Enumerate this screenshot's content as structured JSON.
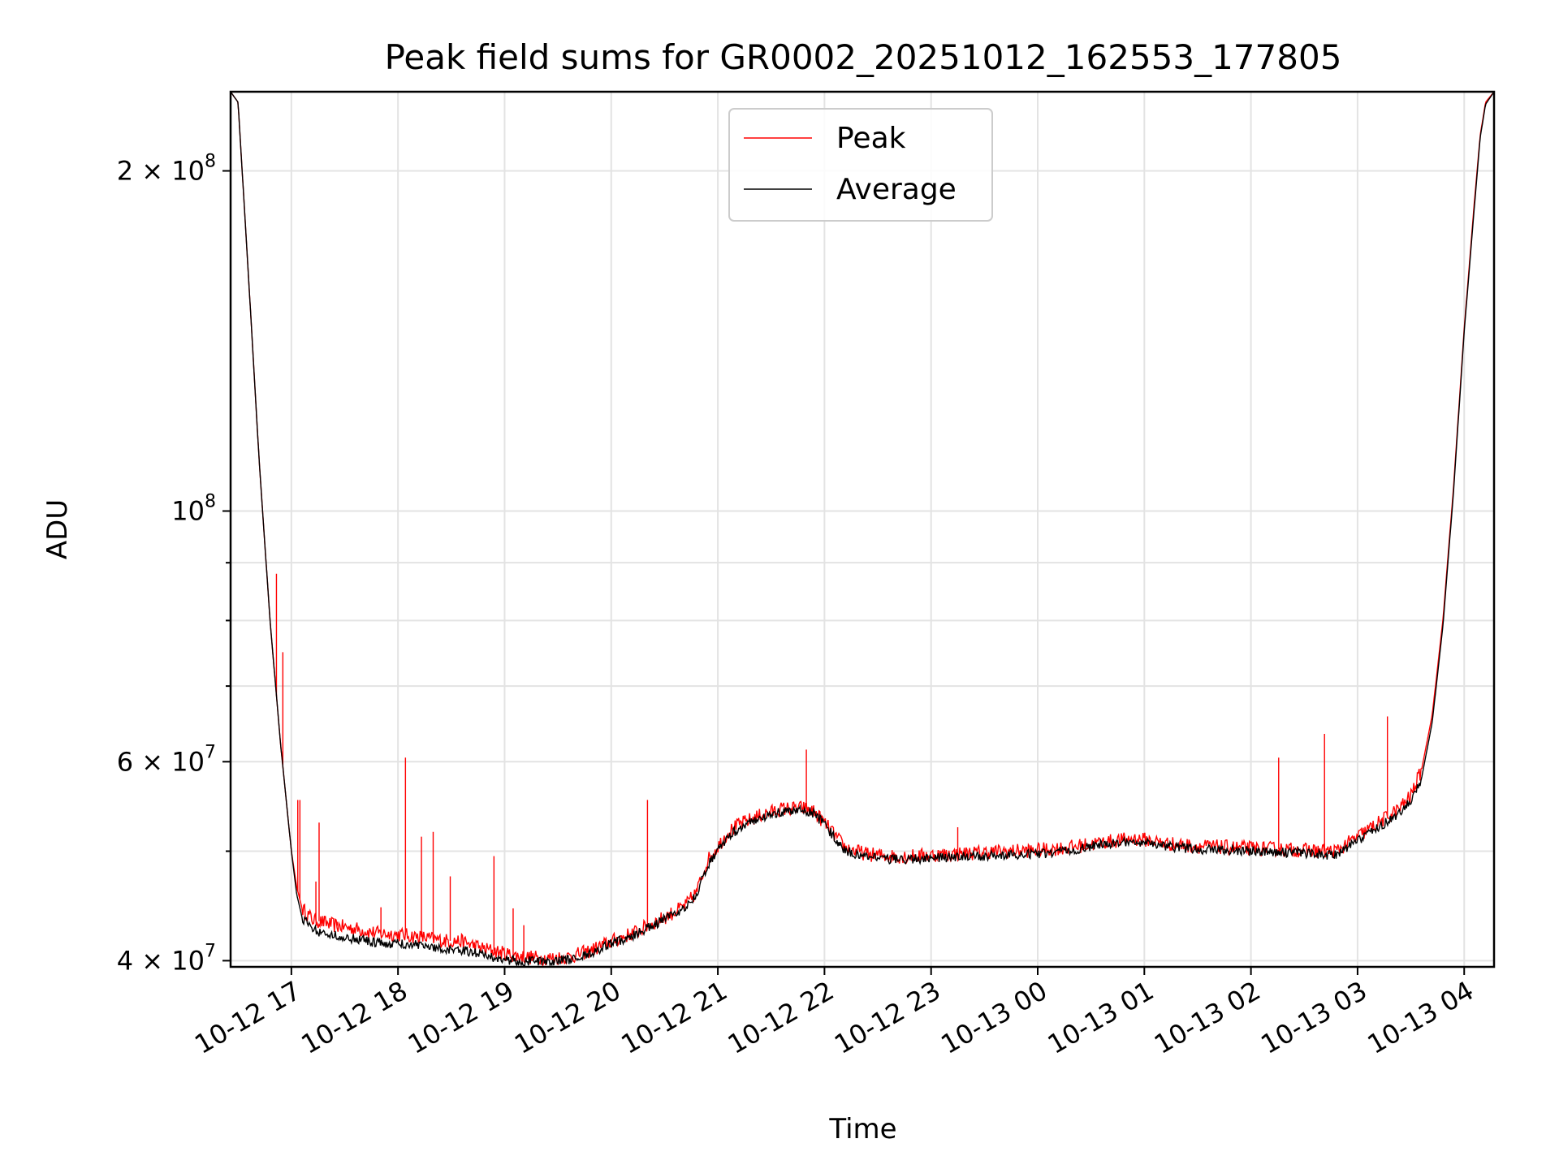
{
  "chart_data": {
    "type": "line",
    "title": "Peak field sums for GR0002_20251012_162553_177805",
    "xlabel": "Time",
    "ylabel": "ADU",
    "yscale": "log",
    "ylim": [
      39500000,
      235000000
    ],
    "x_unit": "hours since 10-12 16:00",
    "xlim": [
      0.43,
      12.28
    ],
    "grid": true,
    "legend_placement": "upper center",
    "x_ticks": [
      {
        "value": 1,
        "label": "10-12 17"
      },
      {
        "value": 2,
        "label": "10-12 18"
      },
      {
        "value": 3,
        "label": "10-12 19"
      },
      {
        "value": 4,
        "label": "10-12 20"
      },
      {
        "value": 5,
        "label": "10-12 21"
      },
      {
        "value": 6,
        "label": "10-12 22"
      },
      {
        "value": 7,
        "label": "10-12 23"
      },
      {
        "value": 8,
        "label": "10-13 00"
      },
      {
        "value": 9,
        "label": "10-13 01"
      },
      {
        "value": 10,
        "label": "10-13 02"
      },
      {
        "value": 11,
        "label": "10-13 03"
      },
      {
        "value": 12,
        "label": "10-13 04"
      }
    ],
    "y_major_ticks": [
      {
        "value": 40000000,
        "mant": "4",
        "exp": "7"
      },
      {
        "value": 60000000,
        "mant": "6",
        "exp": "7"
      },
      {
        "value": 100000000,
        "mant": "",
        "exp": "8"
      },
      {
        "value": 200000000,
        "mant": "2",
        "exp": "8"
      }
    ],
    "y_minor_ticks": [
      50000000,
      70000000,
      80000000,
      90000000
    ],
    "series": [
      {
        "name": "Peak",
        "color": "#ff0000",
        "x": [
          0.43,
          0.5,
          0.6,
          0.7,
          0.8,
          0.9,
          1.0,
          1.05,
          1.1,
          1.2,
          1.4,
          1.6,
          1.8,
          2.0,
          2.2,
          2.4,
          2.6,
          2.8,
          2.9,
          3.0,
          3.1,
          3.2,
          3.4,
          3.6,
          3.8,
          4.0,
          4.2,
          4.4,
          4.6,
          4.7,
          4.8,
          4.9,
          5.0,
          5.1,
          5.2,
          5.4,
          5.6,
          5.8,
          5.9,
          6.0,
          6.1,
          6.2,
          6.4,
          6.6,
          6.8,
          7.0,
          7.2,
          7.5,
          8.0,
          8.3,
          8.6,
          8.9,
          9.0,
          9.2,
          9.5,
          9.8,
          10.0,
          10.3,
          10.5,
          10.7,
          10.8,
          11.0,
          11.2,
          11.4,
          11.5,
          11.6,
          11.7,
          11.8,
          11.9,
          12.0,
          12.1,
          12.15,
          12.2,
          12.28
        ],
        "y": [
          235000000,
          230000000,
          160000000,
          110000000,
          80000000,
          62000000,
          50000000,
          46500000,
          44500000,
          43500000,
          43000000,
          42700000,
          42300000,
          42200000,
          42000000,
          41700000,
          41600000,
          41000000,
          40800000,
          40600000,
          40400000,
          40300000,
          40200000,
          40300000,
          40800000,
          41600000,
          42300000,
          43200000,
          44200000,
          44800000,
          46000000,
          49000000,
          50500000,
          52000000,
          52800000,
          53800000,
          54500000,
          54600000,
          54200000,
          53000000,
          51600000,
          50300000,
          49700000,
          49500000,
          49500000,
          49600000,
          49700000,
          49900000,
          50100000,
          50400000,
          50900000,
          51300000,
          51200000,
          50800000,
          50500000,
          50400000,
          50300000,
          50200000,
          50100000,
          50000000,
          50000000,
          51500000,
          53000000,
          54600000,
          56000000,
          59000000,
          66000000,
          80000000,
          105000000,
          145000000,
          190000000,
          215000000,
          230000000,
          235000000
        ]
      },
      {
        "name": "Average",
        "color": "#000000",
        "x": [
          0.43,
          0.5,
          0.6,
          0.7,
          0.8,
          0.9,
          1.0,
          1.05,
          1.1,
          1.2,
          1.4,
          1.6,
          1.8,
          2.0,
          2.2,
          2.4,
          2.6,
          2.8,
          2.9,
          3.0,
          3.1,
          3.2,
          3.4,
          3.6,
          3.8,
          4.0,
          4.2,
          4.4,
          4.6,
          4.7,
          4.8,
          4.9,
          5.0,
          5.1,
          5.2,
          5.4,
          5.6,
          5.8,
          5.9,
          6.0,
          6.1,
          6.2,
          6.4,
          6.6,
          6.8,
          7.0,
          7.2,
          7.5,
          8.0,
          8.3,
          8.6,
          8.9,
          9.0,
          9.2,
          9.5,
          9.8,
          10.0,
          10.3,
          10.5,
          10.7,
          10.8,
          11.0,
          11.2,
          11.4,
          11.5,
          11.6,
          11.7,
          11.8,
          11.9,
          12.0,
          12.1,
          12.15,
          12.2,
          12.28
        ],
        "y": [
          235000000,
          230000000,
          160000000,
          110000000,
          80000000,
          62000000,
          50000000,
          45800000,
          43700000,
          42600000,
          42100000,
          41800000,
          41500000,
          41400000,
          41300000,
          41000000,
          40900000,
          40500000,
          40300000,
          40100000,
          40000000,
          40000000,
          39900000,
          40100000,
          40600000,
          41400000,
          42100000,
          43000000,
          44000000,
          44600000,
          45700000,
          48500000,
          50000000,
          51600000,
          52400000,
          53500000,
          54200000,
          54400000,
          54000000,
          52800000,
          51300000,
          50000000,
          49400000,
          49200000,
          49200000,
          49300000,
          49400000,
          49500000,
          49700000,
          50100000,
          50700000,
          51000000,
          50900000,
          50500000,
          50200000,
          50100000,
          50000000,
          49900000,
          49800000,
          49600000,
          49600000,
          51000000,
          52500000,
          54000000,
          55500000,
          58000000,
          65000000,
          79000000,
          104000000,
          144000000,
          188000000,
          214000000,
          229000000,
          235000000
        ]
      }
    ],
    "peak_spikes": [
      {
        "x": 0.86,
        "y": 88000000
      },
      {
        "x": 0.92,
        "y": 75000000
      },
      {
        "x": 1.06,
        "y": 55500000
      },
      {
        "x": 1.08,
        "y": 55500000
      },
      {
        "x": 1.23,
        "y": 47000000
      },
      {
        "x": 1.26,
        "y": 53000000
      },
      {
        "x": 1.43,
        "y": 43300000
      },
      {
        "x": 1.84,
        "y": 44600000
      },
      {
        "x": 2.07,
        "y": 60500000
      },
      {
        "x": 2.22,
        "y": 51500000
      },
      {
        "x": 2.33,
        "y": 52000000
      },
      {
        "x": 2.49,
        "y": 47500000
      },
      {
        "x": 2.9,
        "y": 49500000
      },
      {
        "x": 3.08,
        "y": 44500000
      },
      {
        "x": 3.18,
        "y": 43000000
      },
      {
        "x": 4.34,
        "y": 55500000
      },
      {
        "x": 5.83,
        "y": 61500000
      },
      {
        "x": 7.25,
        "y": 52500000
      },
      {
        "x": 10.26,
        "y": 60500000
      },
      {
        "x": 10.69,
        "y": 63500000
      },
      {
        "x": 11.28,
        "y": 65800000
      }
    ]
  }
}
